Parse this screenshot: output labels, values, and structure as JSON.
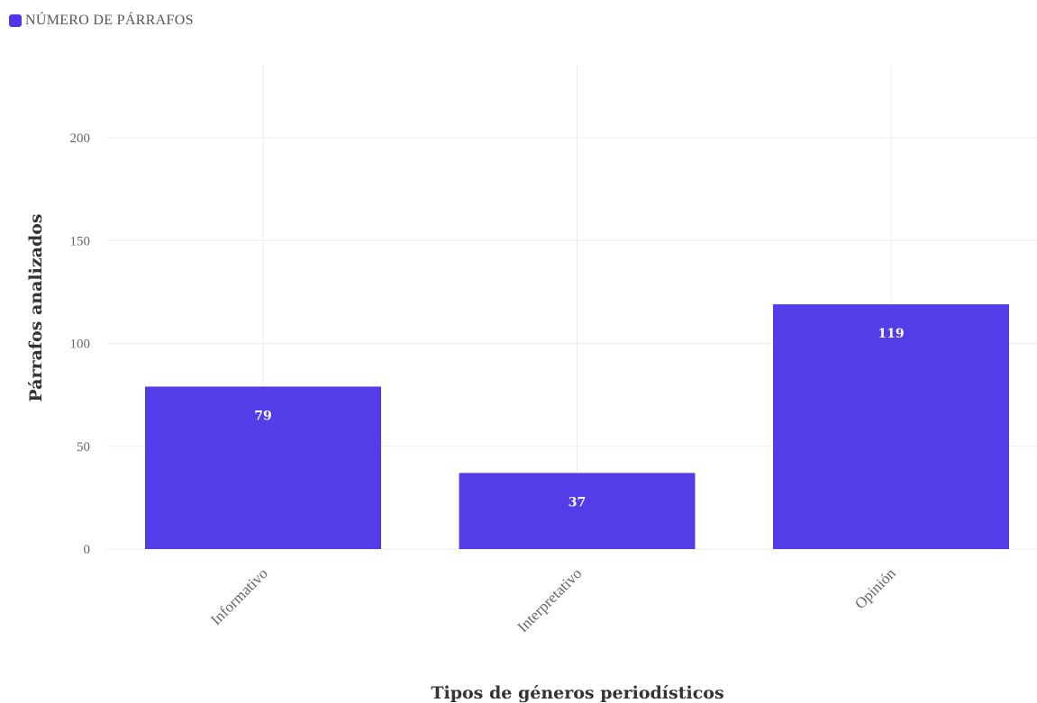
{
  "chart_data": {
    "type": "bar",
    "categories": [
      "Informativo",
      "Interpretativo",
      "Opinión"
    ],
    "series": [
      {
        "name": "NÚMERO DE PÁRRAFOS",
        "values": [
          79,
          37,
          119
        ],
        "color": "#4f36e8"
      }
    ],
    "xlabel": "Tipos de géneros periodísticos",
    "ylabel": "Párrafos analizados",
    "ylim": [
      0,
      200
    ],
    "yticks": [
      0,
      50,
      100,
      150,
      200
    ],
    "grid": true,
    "legend_position": "top-left",
    "data_labels": [
      "79",
      "37",
      "119"
    ],
    "tick_labels": [
      "0",
      "50",
      "100",
      "150",
      "200"
    ]
  }
}
